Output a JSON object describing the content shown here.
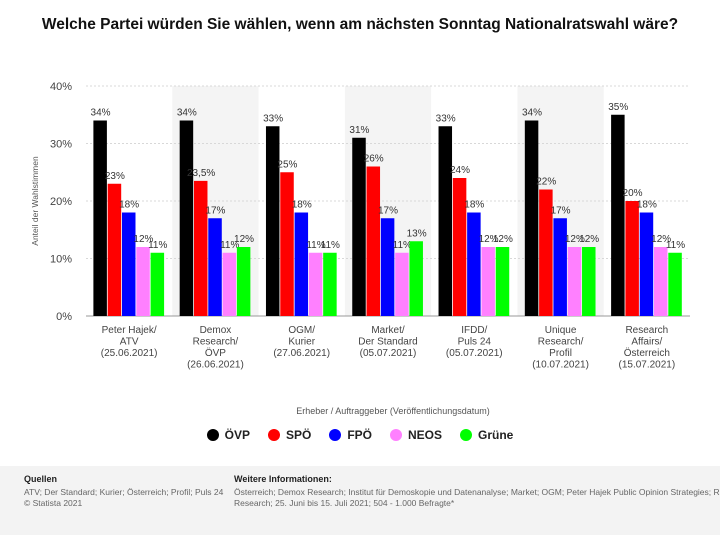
{
  "title": "Welche Partei würden Sie wählen, wenn am nächsten Sonntag Nationalratswahl wäre?",
  "legend": [
    {
      "name": "ÖVP",
      "color": "#000000"
    },
    {
      "name": "SPÖ",
      "color": "#ff0000"
    },
    {
      "name": "FPÖ",
      "color": "#0000ff"
    },
    {
      "name": "NEOS",
      "color": "#ff80ff"
    },
    {
      "name": "Grüne",
      "color": "#00ff00"
    }
  ],
  "chart_data": {
    "type": "bar",
    "title": "Welche Partei würden Sie wählen, wenn am nächsten Sonntag Nationalratswahl wäre?",
    "xlabel": "Erheber / Auftraggeber (Veröffentlichungsdatum)",
    "ylabel": "Anteil der Wahlstimmen",
    "ylim": [
      0,
      40
    ],
    "yticks": [
      "0%",
      "10%",
      "20%",
      "30%",
      "40%"
    ],
    "grid": true,
    "legend_position": "bottom",
    "categories": [
      [
        "Peter Hajek/",
        "ATV",
        "(25.06.2021)"
      ],
      [
        "Demox",
        "Research/",
        "ÖVP",
        "(26.06.2021)"
      ],
      [
        "OGM/",
        "Kurier",
        "(27.06.2021)"
      ],
      [
        "Market/",
        "Der Standard",
        "(05.07.2021)"
      ],
      [
        "IFDD/",
        "Puls 24",
        "(05.07.2021)"
      ],
      [
        "Unique",
        "Research/",
        "Profil",
        "(10.07.2021)"
      ],
      [
        "Research",
        "Affairs/",
        "Österreich",
        "(15.07.2021)"
      ]
    ],
    "series": [
      {
        "name": "ÖVP",
        "color": "#000000",
        "values": [
          34,
          34,
          33,
          31,
          33,
          34,
          35
        ],
        "labels": [
          "34%",
          "34%",
          "33%",
          "31%",
          "33%",
          "34%",
          "35%"
        ]
      },
      {
        "name": "SPÖ",
        "color": "#ff0000",
        "values": [
          23,
          23.5,
          25,
          26,
          24,
          22,
          20
        ],
        "labels": [
          "23%",
          "23,5%",
          "25%",
          "26%",
          "24%",
          "22%",
          "20%"
        ]
      },
      {
        "name": "FPÖ",
        "color": "#0000ff",
        "values": [
          18,
          17,
          18,
          17,
          18,
          17,
          18
        ],
        "labels": [
          "18%",
          "17%",
          "18%",
          "17%",
          "18%",
          "17%",
          "18%"
        ]
      },
      {
        "name": "NEOS",
        "color": "#ff80ff",
        "values": [
          12,
          11,
          11,
          11,
          12,
          12,
          12
        ],
        "labels": [
          "12%",
          "11%",
          "11%",
          "11%",
          "12%",
          "12%",
          "12%"
        ]
      },
      {
        "name": "Grüne",
        "color": "#00ff00",
        "values": [
          11,
          12,
          11,
          13,
          12,
          12,
          11
        ],
        "labels": [
          "11%",
          "12%",
          "11%",
          "13%",
          "12%",
          "12%",
          "11%"
        ]
      }
    ]
  },
  "footer": {
    "sources_heading": "Quellen",
    "sources_text": "ATV; Der Standard; Kurier; Österreich; Profil; Puls 24",
    "copyright": "© Statista 2021",
    "info_heading": "Weitere Informationen:",
    "info_line1": "Österreich; Demox Research; Institut für Demoskopie und Datenanalyse; Market; OGM; Peter Hajek Public Opinion Strategies; Research Affairs; Unique",
    "info_line2": "Research; 25. Juni bis 15. Juli 2021; 504 - 1.000 Befragte*"
  }
}
